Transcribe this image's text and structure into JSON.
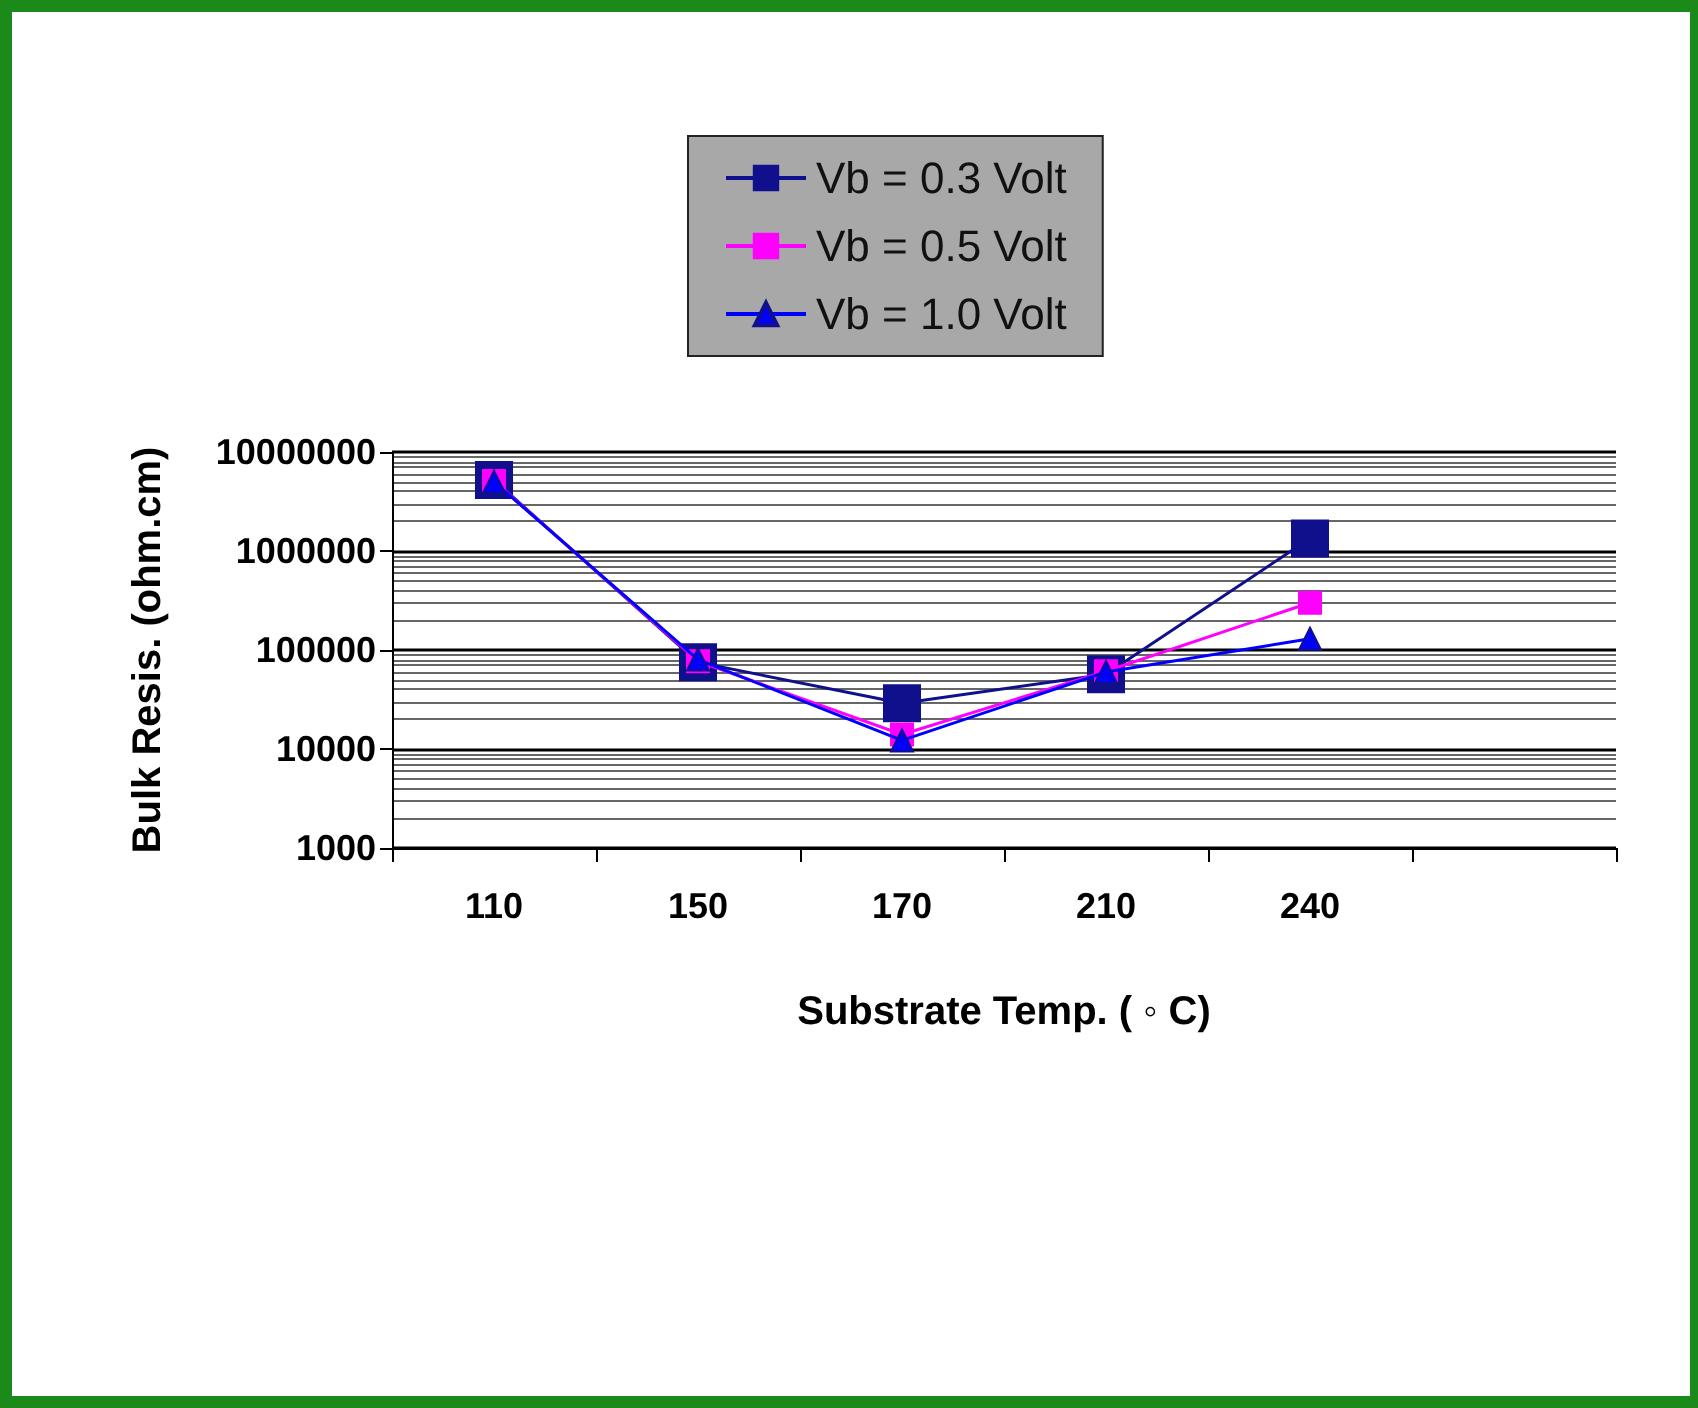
{
  "chart_data": {
    "type": "line",
    "xlabel": "Substrate Temp. ( ◦ C)",
    "ylabel": "Bulk Resis. (ohm.cm)",
    "categories": [
      "110",
      "150",
      "170",
      "210",
      "240",
      null
    ],
    "series": [
      {
        "name": "Vb = 0.3 Volt",
        "color": "#10108c",
        "marker": "square",
        "values": [
          5200000,
          75000,
          29000,
          57000,
          1340000,
          null
        ]
      },
      {
        "name": "Vb = 0.5 Volt",
        "color": "#ff00ff",
        "marker": "square",
        "values": [
          5100000,
          77000,
          14000,
          61000,
          300000,
          null
        ]
      },
      {
        "name": "Vb = 1.0 Volt",
        "color": "#0000ff",
        "marker": "triangle",
        "values": [
          5000000,
          80000,
          12200,
          60000,
          130000,
          null
        ]
      }
    ],
    "log": true,
    "ylim": [
      1000,
      10000000
    ],
    "yticks": [
      1000,
      10000,
      100000,
      1000000,
      10000000
    ],
    "grid": "y",
    "legend": "top",
    "line_style": "solid"
  }
}
